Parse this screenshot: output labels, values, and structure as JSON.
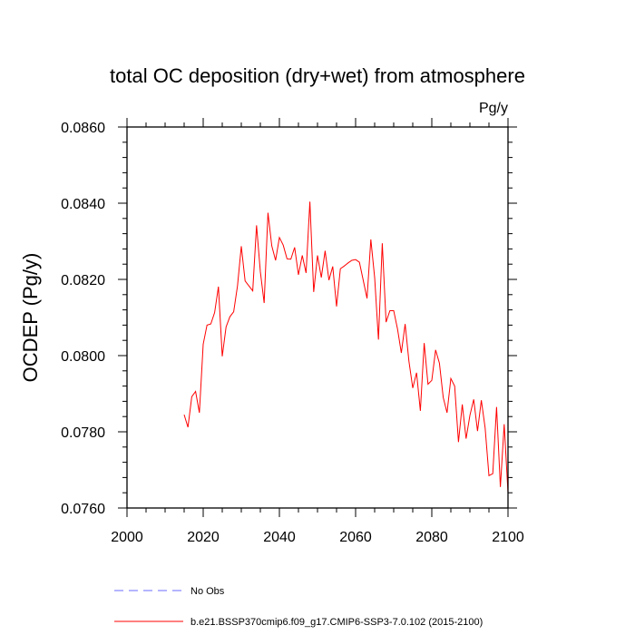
{
  "chart_data": {
    "type": "line",
    "title": "total OC deposition (dry+wet) from atmosphere",
    "units_label": "Pg/y",
    "xlabel": "",
    "ylabel": "OCDEP  (Pg/y)",
    "xlim": [
      2000,
      2100
    ],
    "ylim": [
      0.076,
      0.086
    ],
    "x_ticks": [
      2000,
      2020,
      2040,
      2060,
      2080,
      2100
    ],
    "x_tick_labels": [
      "2000",
      "2020",
      "2040",
      "2060",
      "2080",
      "2100"
    ],
    "y_ticks": [
      0.076,
      0.078,
      0.08,
      0.082,
      0.084,
      0.086
    ],
    "y_tick_labels": [
      "0.0760",
      "0.0780",
      "0.0800",
      "0.0820",
      "0.0840",
      "0.0860"
    ],
    "grid": false,
    "legend": [
      {
        "label": "No Obs",
        "color": "#6b6bff",
        "style": "dashed"
      },
      {
        "label": "b.e21.BSSP370cmip6.f09_g17.CMIP6-SSP3-7.0.102 (2015-2100)",
        "color": "#ff0000",
        "style": "solid"
      }
    ],
    "series": [
      {
        "name": "b.e21.BSSP370cmip6.f09_g17.CMIP6-SSP3-7.0.102 (2015-2100)",
        "color": "#ff0000",
        "x": [
          2015,
          2016,
          2017,
          2018,
          2019,
          2020,
          2021,
          2022,
          2023,
          2024,
          2025,
          2026,
          2027,
          2028,
          2029,
          2030,
          2031,
          2032,
          2033,
          2034,
          2035,
          2036,
          2037,
          2038,
          2039,
          2040,
          2041,
          2042,
          2043,
          2044,
          2045,
          2046,
          2047,
          2048,
          2049,
          2050,
          2051,
          2052,
          2053,
          2054,
          2055,
          2056,
          2057,
          2058,
          2059,
          2060,
          2061,
          2062,
          2063,
          2064,
          2065,
          2066,
          2067,
          2068,
          2069,
          2070,
          2071,
          2072,
          2073,
          2074,
          2075,
          2076,
          2077,
          2078,
          2079,
          2080,
          2081,
          2082,
          2083,
          2084,
          2085,
          2086,
          2087,
          2088,
          2089,
          2090,
          2091,
          2092,
          2093,
          2094,
          2095,
          2096,
          2097,
          2098,
          2099,
          2100
        ],
        "values": [
          0.07845,
          0.07812,
          0.07892,
          0.07906,
          0.0785,
          0.0803,
          0.0808,
          0.08083,
          0.08113,
          0.08181,
          0.07998,
          0.08075,
          0.08102,
          0.08115,
          0.08183,
          0.08287,
          0.08196,
          0.08183,
          0.0817,
          0.08342,
          0.0822,
          0.08138,
          0.08375,
          0.08288,
          0.0825,
          0.0831,
          0.0829,
          0.08254,
          0.08253,
          0.08284,
          0.08212,
          0.08263,
          0.08217,
          0.08404,
          0.08167,
          0.08263,
          0.08205,
          0.08275,
          0.08198,
          0.08234,
          0.08129,
          0.08228,
          0.08235,
          0.08243,
          0.0825,
          0.08252,
          0.08245,
          0.08198,
          0.0815,
          0.08305,
          0.08205,
          0.08042,
          0.08295,
          0.08088,
          0.08118,
          0.08118,
          0.0807,
          0.08007,
          0.08083,
          0.07985,
          0.07915,
          0.07955,
          0.07855,
          0.08033,
          0.07925,
          0.07935,
          0.08015,
          0.0798,
          0.0789,
          0.0785,
          0.0794,
          0.0792,
          0.07773,
          0.07872,
          0.07782,
          0.07843,
          0.07885,
          0.07802,
          0.07883,
          0.0781,
          0.07685,
          0.0769,
          0.07865,
          0.07655,
          0.0782,
          0.0764
        ]
      }
    ]
  }
}
